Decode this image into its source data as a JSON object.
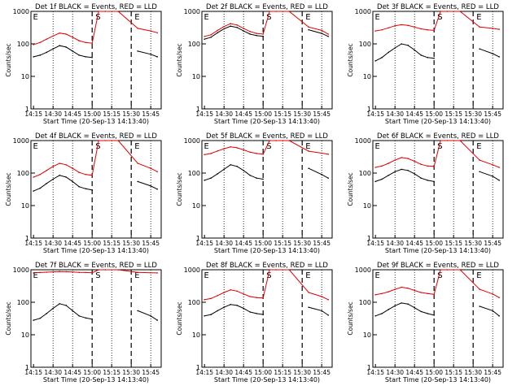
{
  "figure": {
    "colors": {
      "events": "#000000",
      "lld": "#e00000",
      "frame": "#000000",
      "background": "#ffffff"
    }
  },
  "chart_data": [
    {
      "type": "line",
      "title": "Det 1f BLACK = Events, RED = LLD",
      "xlabel": "Start Time (20-Sep-13 14:13:40)",
      "ylabel": "Counts/sec",
      "y_scale": "log",
      "ylim": [
        1,
        1000
      ],
      "yticks": [
        "1",
        "10",
        "100",
        "1000"
      ],
      "xticks": [
        "14:15",
        "14:30",
        "14:45",
        "15:00",
        "15:15",
        "15:30",
        "15:45"
      ],
      "markers": [
        "E",
        "S",
        "E"
      ],
      "series": [
        {
          "name": "Events",
          "values": [
            40,
            45,
            55,
            70,
            88,
            80,
            60,
            45,
            40,
            38,
            null,
            null,
            null,
            60,
            48,
            40
          ]
        },
        {
          "name": "LLD",
          "values": [
            95,
            110,
            140,
            175,
            215,
            200,
            160,
            125,
            110,
            105,
            1000,
            1000,
            1000,
            300,
            250,
            220
          ]
        }
      ],
      "x": [
        "14:15",
        "14:20",
        "14:25",
        "14:30",
        "14:35",
        "14:40",
        "14:45",
        "14:50",
        "14:55",
        "15:00",
        "15:05",
        "15:10",
        "15:20",
        "15:35",
        "15:45",
        "15:50"
      ]
    },
    {
      "type": "line",
      "title": "Det 2f BLACK = Events, RED = LLD",
      "xlabel": "Start Time (20-Sep-13 14:13:40)",
      "ylabel": "Counts/sec",
      "y_scale": "log",
      "ylim": [
        1,
        1000
      ],
      "yticks": [
        "1",
        "10",
        "100",
        "1000"
      ],
      "xticks": [
        "14:15",
        "14:30",
        "14:45",
        "15:00",
        "15:15",
        "15:30",
        "15:45"
      ],
      "markers": [
        "E",
        "S",
        "E"
      ],
      "series": [
        {
          "name": "Events",
          "values": [
            140,
            160,
            220,
            290,
            350,
            320,
            250,
            200,
            180,
            170,
            null,
            null,
            null,
            270,
            210,
            170
          ]
        },
        {
          "name": "LLD",
          "values": [
            170,
            190,
            260,
            340,
            420,
            380,
            300,
            240,
            210,
            200,
            1000,
            1000,
            1000,
            330,
            260,
            200
          ]
        }
      ],
      "x": [
        "14:15",
        "14:20",
        "14:25",
        "14:30",
        "14:35",
        "14:40",
        "14:45",
        "14:50",
        "14:55",
        "15:00",
        "15:05",
        "15:10",
        "15:20",
        "15:35",
        "15:45",
        "15:50"
      ]
    },
    {
      "type": "line",
      "title": "Det 3f BLACK = Events, RED = LLD",
      "xlabel": "Start Time (20-Sep-13 14:13:40)",
      "ylabel": "Counts/sec",
      "y_scale": "log",
      "ylim": [
        1,
        1000
      ],
      "yticks": [
        "1",
        "10",
        "100",
        "1000"
      ],
      "xticks": [
        "14:15",
        "14:30",
        "14:45",
        "15:00",
        "15:15",
        "15:30",
        "15:45"
      ],
      "markers": [
        "E",
        "S",
        "E"
      ],
      "series": [
        {
          "name": "Events",
          "values": [
            30,
            38,
            55,
            75,
            100,
            90,
            65,
            45,
            38,
            36,
            null,
            null,
            null,
            70,
            50,
            40
          ]
        },
        {
          "name": "LLD",
          "values": [
            250,
            270,
            310,
            360,
            390,
            370,
            330,
            290,
            270,
            260,
            1000,
            1000,
            1000,
            330,
            300,
            280
          ]
        }
      ],
      "x": [
        "14:15",
        "14:20",
        "14:25",
        "14:30",
        "14:35",
        "14:40",
        "14:45",
        "14:50",
        "14:55",
        "15:00",
        "15:05",
        "15:10",
        "15:20",
        "15:35",
        "15:45",
        "15:50"
      ]
    },
    {
      "type": "line",
      "title": "Det 4f BLACK = Events, RED = LLD",
      "xlabel": "Start Time (20-Sep-13 14:13:40)",
      "ylabel": "Counts/sec",
      "y_scale": "log",
      "ylim": [
        1,
        1000
      ],
      "yticks": [
        "1",
        "10",
        "100",
        "1000"
      ],
      "xticks": [
        "14:15",
        "14:30",
        "14:45",
        "15:00",
        "15:15",
        "15:30",
        "15:45"
      ],
      "markers": [
        "E",
        "S",
        "E"
      ],
      "series": [
        {
          "name": "Events",
          "values": [
            28,
            34,
            48,
            65,
            85,
            75,
            55,
            38,
            33,
            30,
            null,
            null,
            null,
            55,
            40,
            32
          ]
        },
        {
          "name": "LLD",
          "values": [
            75,
            90,
            120,
            160,
            200,
            180,
            140,
            105,
            90,
            85,
            1000,
            1000,
            1000,
            200,
            140,
            110
          ]
        }
      ],
      "x": [
        "14:15",
        "14:20",
        "14:25",
        "14:30",
        "14:35",
        "14:40",
        "14:45",
        "14:50",
        "14:55",
        "15:00",
        "15:05",
        "15:10",
        "15:20",
        "15:35",
        "15:45",
        "15:50"
      ]
    },
    {
      "type": "line",
      "title": "Det 5f BLACK = Events, RED = LLD",
      "xlabel": "Start Time (20-Sep-13 14:13:40)",
      "ylabel": "Counts/sec",
      "y_scale": "log",
      "ylim": [
        1,
        1000
      ],
      "yticks": [
        "1",
        "10",
        "100",
        "1000"
      ],
      "xticks": [
        "14:15",
        "14:30",
        "14:45",
        "15:00",
        "15:15",
        "15:30",
        "15:45"
      ],
      "markers": [
        "E",
        "S",
        "E"
      ],
      "series": [
        {
          "name": "Events",
          "values": [
            60,
            70,
            95,
            130,
            180,
            160,
            120,
            85,
            70,
            65,
            null,
            null,
            null,
            140,
            90,
            70
          ]
        },
        {
          "name": "LLD",
          "values": [
            370,
            400,
            480,
            560,
            640,
            600,
            520,
            440,
            400,
            380,
            1000,
            1000,
            1000,
            470,
            410,
            380
          ]
        }
      ],
      "x": [
        "14:15",
        "14:20",
        "14:25",
        "14:30",
        "14:35",
        "14:40",
        "14:45",
        "14:50",
        "14:55",
        "15:00",
        "15:05",
        "15:10",
        "15:20",
        "15:35",
        "15:45",
        "15:50"
      ]
    },
    {
      "type": "line",
      "title": "Det 6f BLACK = Events, RED = LLD",
      "xlabel": "Start Time (20-Sep-13 14:13:40)",
      "ylabel": "Counts/sec",
      "y_scale": "log",
      "ylim": [
        1,
        1000
      ],
      "yticks": [
        "1",
        "10",
        "100",
        "1000"
      ],
      "xticks": [
        "14:15",
        "14:30",
        "14:45",
        "15:00",
        "15:15",
        "15:30",
        "15:45"
      ],
      "markers": [
        "E",
        "S",
        "E"
      ],
      "series": [
        {
          "name": "Events",
          "values": [
            55,
            65,
            85,
            110,
            130,
            120,
            95,
            70,
            60,
            55,
            null,
            null,
            null,
            110,
            80,
            60
          ]
        },
        {
          "name": "LLD",
          "values": [
            150,
            165,
            200,
            250,
            300,
            280,
            230,
            185,
            165,
            160,
            1000,
            1000,
            1000,
            250,
            180,
            150
          ]
        }
      ],
      "x": [
        "14:15",
        "14:20",
        "14:25",
        "14:30",
        "14:35",
        "14:40",
        "14:45",
        "14:50",
        "14:55",
        "15:00",
        "15:05",
        "15:10",
        "15:20",
        "15:35",
        "15:45",
        "15:50"
      ]
    },
    {
      "type": "line",
      "title": "Det 7f BLACK = Events, RED = LLD",
      "xlabel": "Start Time (20-Sep-13 14:13:40)",
      "ylabel": "Counts/sec",
      "y_scale": "log",
      "ylim": [
        1,
        1000
      ],
      "yticks": [
        "1",
        "10",
        "100",
        "1000"
      ],
      "xticks": [
        "14:15",
        "14:30",
        "14:45",
        "15:00",
        "15:15",
        "15:30",
        "15:45"
      ],
      "markers": [
        "E",
        "S",
        "E"
      ],
      "series": [
        {
          "name": "Events",
          "values": [
            28,
            32,
            45,
            65,
            90,
            80,
            55,
            38,
            33,
            30,
            null,
            null,
            null,
            55,
            38,
            28
          ]
        },
        {
          "name": "LLD",
          "values": [
            800,
            820,
            840,
            860,
            880,
            870,
            850,
            830,
            820,
            810,
            1000,
            1000,
            1000,
            830,
            810,
            800
          ]
        }
      ],
      "x": [
        "14:15",
        "14:20",
        "14:25",
        "14:30",
        "14:35",
        "14:40",
        "14:45",
        "14:50",
        "14:55",
        "15:00",
        "15:05",
        "15:10",
        "15:20",
        "15:35",
        "15:45",
        "15:50"
      ]
    },
    {
      "type": "line",
      "title": "Det 8f BLACK = Events, RED = LLD",
      "xlabel": "Start Time (20-Sep-13 14:13:40)",
      "ylabel": "Counts/sec",
      "y_scale": "log",
      "ylim": [
        1,
        1000
      ],
      "yticks": [
        "1",
        "10",
        "100",
        "1000"
      ],
      "xticks": [
        "14:15",
        "14:30",
        "14:45",
        "15:00",
        "15:15",
        "15:30",
        "15:45"
      ],
      "markers": [
        "E",
        "S",
        "E"
      ],
      "series": [
        {
          "name": "Events",
          "values": [
            38,
            42,
            55,
            70,
            85,
            80,
            65,
            50,
            45,
            42,
            null,
            null,
            null,
            70,
            55,
            40
          ]
        },
        {
          "name": "LLD",
          "values": [
            120,
            130,
            160,
            200,
            240,
            220,
            180,
            150,
            140,
            135,
            1000,
            1000,
            1000,
            200,
            150,
            120
          ]
        }
      ],
      "x": [
        "14:15",
        "14:20",
        "14:25",
        "14:30",
        "14:35",
        "14:40",
        "14:45",
        "14:50",
        "14:55",
        "15:00",
        "15:05",
        "15:10",
        "15:20",
        "15:35",
        "15:45",
        "15:50"
      ]
    },
    {
      "type": "line",
      "title": "Det 9f BLACK = Events, RED = LLD",
      "xlabel": "Start Time (20-Sep-13 14:13:40)",
      "ylabel": "Counts/sec",
      "y_scale": "log",
      "ylim": [
        1,
        1000
      ],
      "yticks": [
        "1",
        "10",
        "100",
        "1000"
      ],
      "xticks": [
        "14:15",
        "14:30",
        "14:45",
        "15:00",
        "15:15",
        "15:30",
        "15:45"
      ],
      "markers": [
        "E",
        "S",
        "E"
      ],
      "series": [
        {
          "name": "Events",
          "values": [
            38,
            45,
            60,
            78,
            95,
            88,
            68,
            52,
            45,
            40,
            null,
            null,
            null,
            75,
            55,
            38
          ]
        },
        {
          "name": "LLD",
          "values": [
            170,
            185,
            210,
            250,
            290,
            270,
            230,
            200,
            185,
            175,
            1000,
            1000,
            1000,
            250,
            180,
            140
          ]
        }
      ],
      "x": [
        "14:15",
        "14:20",
        "14:25",
        "14:30",
        "14:35",
        "14:40",
        "14:45",
        "14:50",
        "14:55",
        "15:00",
        "15:05",
        "15:10",
        "15:20",
        "15:35",
        "15:45",
        "15:50"
      ]
    }
  ]
}
